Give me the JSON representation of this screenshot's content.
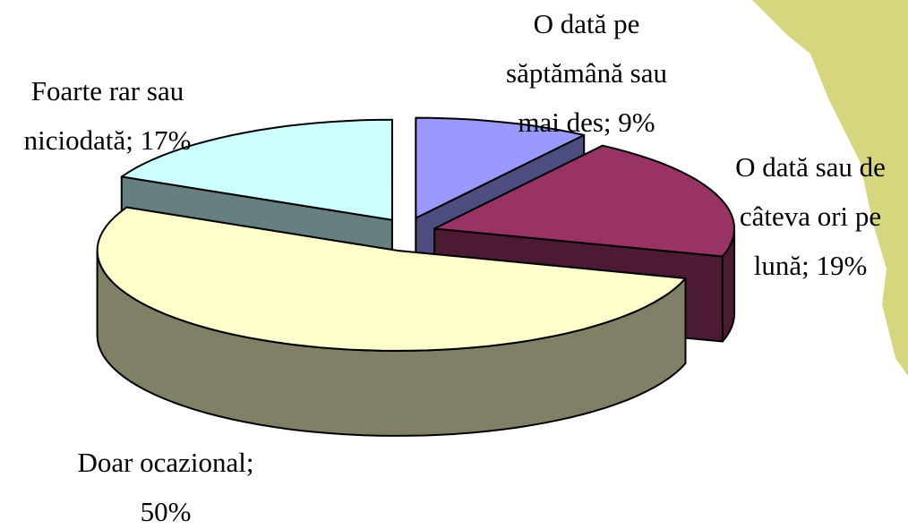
{
  "chart_data": {
    "type": "pie",
    "values": [
      9,
      19,
      50,
      17
    ],
    "value_labels": [
      [
        "O dată pe",
        "săptămână sau",
        "mai des; 9%"
      ],
      [
        "O dată sau de",
        "câteva ori pe",
        "lună; 19%"
      ],
      [
        "Doar ocazional;",
        "50%"
      ],
      [
        "Foarte rar sau",
        "niciodată; 17%"
      ]
    ],
    "colors": [
      "#9999ff",
      "#993366",
      "#ffffcc",
      "#ccffff"
    ],
    "side_colors": [
      "#4d4d80",
      "#4d1a33",
      "#808066",
      "#668080"
    ]
  }
}
